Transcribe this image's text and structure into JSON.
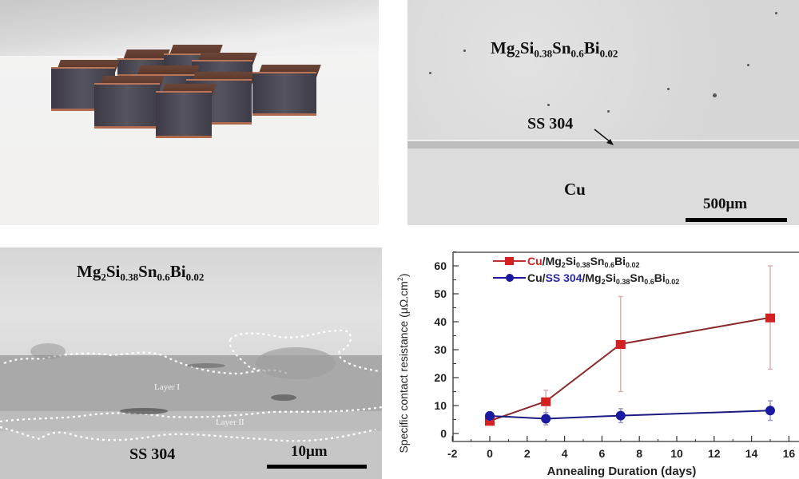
{
  "panels": {
    "photo": {
      "description": "Photograph of eight thermoelectric legs (Cu-capped cubes) on white cloth"
    },
    "sem_low_mag": {
      "label_material": {
        "base": "Mg",
        "parts": [
          [
            "2",
            "Si"
          ],
          [
            "0.38",
            "Sn"
          ],
          [
            "0.6",
            "Bi"
          ],
          [
            "0.02",
            ""
          ]
        ]
      },
      "label_material_text": "Mg2Si0.38Sn0.6Bi0.02",
      "label_interlayer": "SS 304",
      "label_substrate": "Cu",
      "scale_bar": "500μm"
    },
    "sem_high_mag": {
      "label_material_text": "Mg2Si0.38Sn0.6Bi0.02",
      "label_layer1": "Layer I",
      "label_layer2": "Layer II",
      "label_substrate": "SS 304",
      "scale_bar": "10μm"
    }
  },
  "chart_data": {
    "type": "line",
    "title": "",
    "xlabel": "Annealing Duration (days)",
    "ylabel": "Specific contact resistance (μΩ.cm²)",
    "xlim": [
      -2,
      16
    ],
    "ylim": [
      -2,
      64
    ],
    "x_ticks": [
      -2,
      0,
      2,
      4,
      6,
      8,
      10,
      12,
      14,
      16
    ],
    "y_ticks": [
      0,
      10,
      20,
      30,
      40,
      50,
      60
    ],
    "grid": false,
    "legend_position": "upper left",
    "x": [
      0,
      3,
      7,
      15
    ],
    "series": [
      {
        "name": "Cu/Mg2Si0.38Sn0.6Bi0.02",
        "color": "#d42020",
        "marker": "square",
        "values": [
          4.5,
          11.5,
          32,
          41.5
        ],
        "error": [
          1.5,
          4,
          17,
          18.5
        ]
      },
      {
        "name": "Cu/SS 304/Mg2Si0.38Sn0.6Bi0.02",
        "color": "#1a1aa0",
        "marker": "circle",
        "values": [
          6.3,
          5.3,
          6.4,
          8.2
        ],
        "error": [
          1.5,
          2.2,
          2.5,
          3.5
        ]
      }
    ]
  }
}
